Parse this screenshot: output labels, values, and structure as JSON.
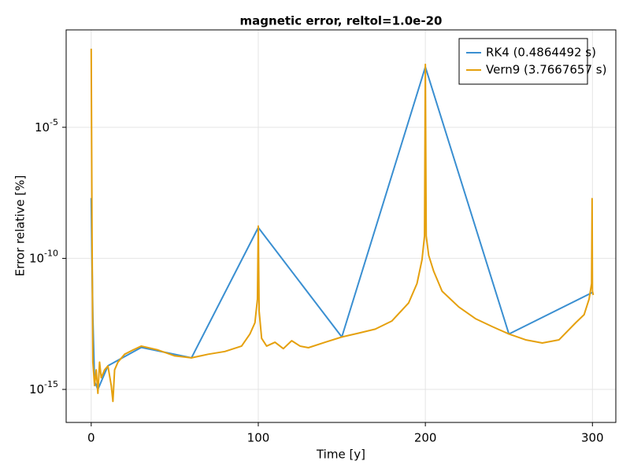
{
  "chart_data": {
    "type": "line",
    "title": "magnetic error, reltol=1.0e-20",
    "x_label": "Time [y]",
    "y_label": "Error relative [%]",
    "xlim": [
      -15,
      314
    ],
    "ylim": [
      5.5e-17,
      0.052
    ],
    "log_y": true,
    "grid": true,
    "legend": "top-right",
    "xticks": [
      0,
      100,
      200,
      300
    ],
    "yticks": [
      {
        "value": 1e-15,
        "label": "10",
        "exponent": "-15"
      },
      {
        "value": 1e-10,
        "label": "10",
        "exponent": "-10"
      },
      {
        "value": 1e-05,
        "label": "10",
        "exponent": "-5"
      }
    ],
    "series": [
      {
        "name": "RK4 (0.4864492 s)",
        "color": "#3a8fd1",
        "x": [
          0,
          0.3,
          1,
          2,
          4,
          10,
          30,
          60,
          100,
          150,
          200,
          250,
          300
        ],
        "values": [
          2e-08,
          5e-10,
          5e-13,
          2e-15,
          1e-15,
          8e-15,
          4e-14,
          1.6e-14,
          1.5e-09,
          1e-13,
          0.002,
          1.3e-13,
          5e-12
        ]
      },
      {
        "name": "Vern9 (3.7667657 s)",
        "color": "#e5a00d",
        "x": [
          0,
          0.5,
          1,
          2,
          3,
          4,
          5,
          6,
          8,
          10,
          12,
          13,
          14,
          16,
          20,
          25,
          30,
          40,
          50,
          60,
          70,
          80,
          90,
          95,
          98,
          99.5,
          100,
          100.5,
          102,
          105,
          110,
          115,
          120,
          125,
          130,
          140,
          150,
          160,
          170,
          180,
          190,
          195,
          198,
          199.5,
          200,
          200.5,
          202,
          205,
          210,
          220,
          230,
          240,
          250,
          260,
          270,
          280,
          290,
          295,
          298,
          299.5,
          299.8,
          300,
          300.5
        ],
        "values": [
          0.01,
          7.2e-10,
          1.1e-14,
          1.4e-15,
          5.6e-15,
          7.1e-16,
          1.1e-14,
          2.8e-15,
          5.6e-15,
          7.9e-15,
          1.4e-15,
          3.5e-16,
          5.6e-15,
          1.1e-14,
          2.2e-14,
          3.2e-14,
          4.5e-14,
          3.2e-14,
          1.9e-14,
          1.6e-14,
          2.2e-14,
          2.8e-14,
          4.5e-14,
          1.3e-13,
          3.5e-13,
          2.8e-12,
          1.7e-09,
          1e-12,
          8.9e-14,
          4.5e-14,
          6.3e-14,
          3.6e-14,
          7.2e-14,
          4.5e-14,
          3.9e-14,
          6.3e-14,
          1e-13,
          1.4e-13,
          2e-13,
          4.1e-13,
          2e-12,
          1.1e-11,
          8.9e-11,
          7.2e-10,
          0.0025,
          7.2e-10,
          1.3e-10,
          3.2e-11,
          5.6e-12,
          1.4e-12,
          5e-13,
          2.5e-13,
          1.3e-13,
          7.8e-14,
          5.9e-14,
          7.8e-14,
          3.5e-13,
          7.1e-13,
          2.8e-12,
          1.1e-11,
          1.9e-08,
          5.6e-12,
          4e-12
        ]
      }
    ]
  }
}
